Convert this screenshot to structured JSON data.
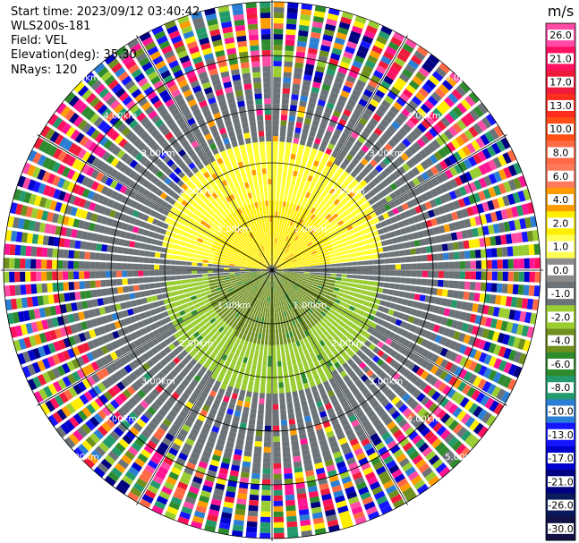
{
  "header": {
    "start_time": "Start time: 2023/09/12 03:40:42",
    "instrument": "WLS200s-181",
    "field": "Field: VEL",
    "elevation": "Elevation(deg): 35.30",
    "nrays": "NRays: 120"
  },
  "chart_data": {
    "type": "ppi",
    "field": "VEL",
    "unit": "m/s",
    "n_rays": 120,
    "elevation_deg": 35.3,
    "range_rings_km": [
      1.0,
      2.0,
      3.0,
      4.0,
      5.0
    ],
    "range_ring_labels": [
      "1.00km",
      "2.00km",
      "3.00km",
      "4.00km",
      "5.00km"
    ],
    "colorbar_ticks": [
      "26.0",
      "21.0",
      "17.0",
      "13.0",
      "10.0",
      "8.0",
      "6.0",
      "4.0",
      "2.0",
      "1.0",
      "0.0",
      "-1.0",
      "-2.0",
      "-4.0",
      "-6.0",
      "-8.0",
      "-10.0",
      "-13.0",
      "-17.0",
      "-21.0",
      "-26.0",
      "-30.0"
    ],
    "colorbar_colors": [
      "#ff4aa6",
      "#ff1060",
      "#ef1b3a",
      "#ff2d1e",
      "#ff4e16",
      "#ff6a44",
      "#ff7a5a",
      "#ff9d00",
      "#ffee00",
      "#ffff55",
      "#8c8c8c",
      "#6b7378",
      "#9acd32",
      "#6f8f1e",
      "#2e8b2e",
      "#239a6c",
      "#2a7fd4",
      "#1515ff",
      "#0000cc",
      "#000080",
      "#0a1a5a",
      "#121244"
    ],
    "pattern": {
      "toward_north": {
        "value_ms": 2.0,
        "range_km": [
          0.5,
          2.4
        ]
      },
      "toward_south": {
        "value_ms": -2.0,
        "range_km": [
          0.5,
          2.3
        ]
      },
      "east_west": {
        "value_ms": 0.0
      },
      "noise_beyond_km": 3.4
    }
  }
}
